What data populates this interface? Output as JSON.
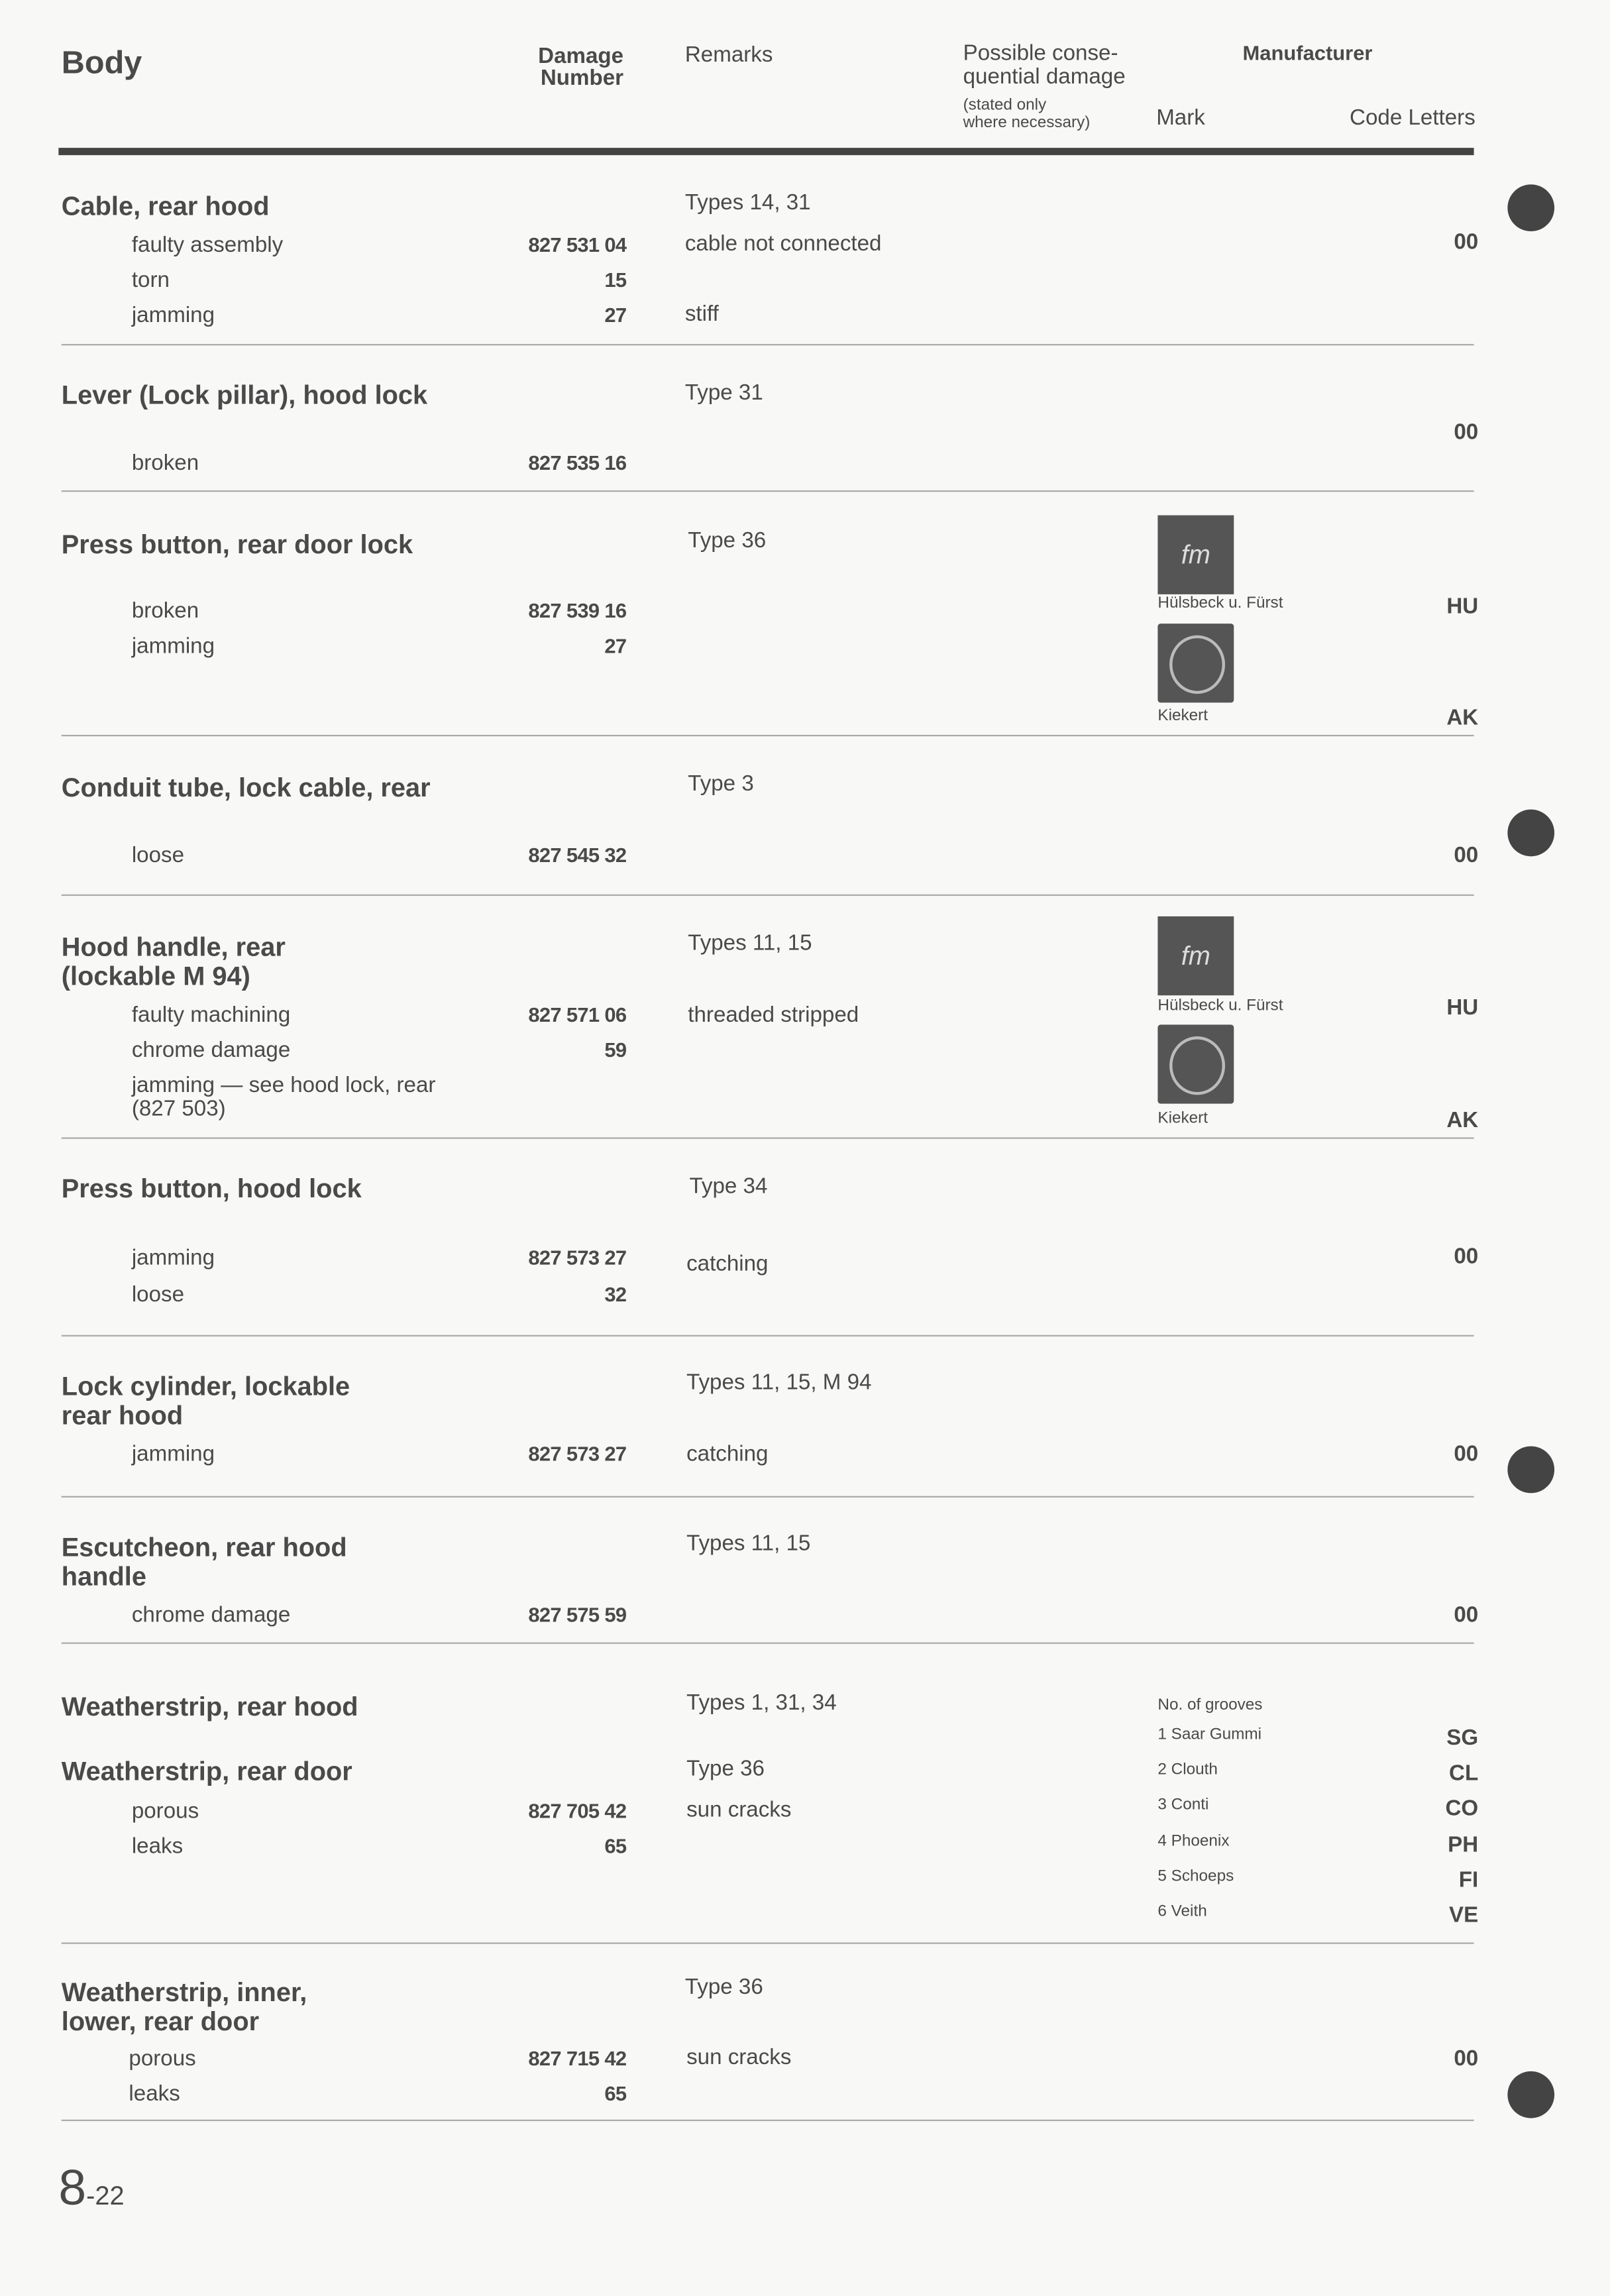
{
  "header": {
    "title": "Body",
    "damage_number": [
      "Damage",
      "Number"
    ],
    "remarks": "Remarks",
    "consequential": [
      "Possible conse-",
      "quential damage"
    ],
    "consequential_note": [
      "(stated only",
      "where necessary)"
    ],
    "manufacturer": "Manufacturer",
    "mark": "Mark",
    "code_letters": "Code Letters"
  },
  "sections": [
    {
      "title": [
        "Cable, rear hood"
      ],
      "remarks": "Types 14, 31",
      "items": [
        {
          "label": "faulty assembly",
          "number": "827 531 04",
          "remark": "cable not connected"
        },
        {
          "label": "torn",
          "number": "15"
        },
        {
          "label": "jamming",
          "number": "27",
          "remark": "stiff"
        }
      ],
      "code": "00"
    },
    {
      "title": [
        "Lever (Lock pillar), hood lock"
      ],
      "remarks": "Type 31",
      "items": [
        {
          "label": "broken",
          "number": "827 535 16"
        }
      ],
      "code": "00"
    },
    {
      "title": [
        "Press button, rear door lock"
      ],
      "remarks": "Type 36",
      "items": [
        {
          "label": "broken",
          "number": "827 539 16"
        },
        {
          "label": "jamming",
          "number": "27"
        }
      ],
      "manufacturers": [
        {
          "mark": "Hülsbeck u. Fürst",
          "code": "HU",
          "logo": "hülsbeck-fürst-logo"
        },
        {
          "mark": "Kiekert",
          "code": "AK",
          "logo": "kiekert-logo"
        }
      ]
    },
    {
      "title": [
        "Conduit tube, lock cable, rear"
      ],
      "remarks": "Type 3",
      "items": [
        {
          "label": "loose",
          "number": "827 545 32"
        }
      ],
      "code": "00"
    },
    {
      "title": [
        "Hood handle, rear",
        "(lockable M 94)"
      ],
      "remarks": "Types 11, 15",
      "items": [
        {
          "label": "faulty machining",
          "number": "827 571 06",
          "remark": "threaded stripped"
        },
        {
          "label": "chrome damage",
          "number": "59"
        },
        {
          "label": "jamming — see hood lock, rear",
          "label2": "(827 503)"
        }
      ],
      "manufacturers": [
        {
          "mark": "Hülsbeck u. Fürst",
          "code": "HU"
        },
        {
          "mark": "Kiekert",
          "code": "AK"
        }
      ]
    },
    {
      "title": [
        "Press button, hood lock"
      ],
      "remarks": "Type 34",
      "items": [
        {
          "label": "jamming",
          "number": "827 573 27",
          "remark": "catching"
        },
        {
          "label": "loose",
          "number": "32"
        }
      ],
      "code": "00"
    },
    {
      "title": [
        "Lock cylinder, lockable",
        "rear hood"
      ],
      "remarks": "Types 11, 15, M 94",
      "items": [
        {
          "label": "jamming",
          "number": "827 573 27",
          "remark": "catching"
        }
      ],
      "code": "00"
    },
    {
      "title": [
        "Escutcheon, rear hood",
        "handle"
      ],
      "remarks": "Types 11, 15",
      "items": [
        {
          "label": "chrome damage",
          "number": "827 575 59"
        }
      ],
      "code": "00"
    },
    {
      "title": [
        "Weatherstrip, rear hood"
      ],
      "remarks": "Types 1, 31, 34",
      "title_b": "Weatherstrip, rear door",
      "remarks_b": "Type 36",
      "items": [
        {
          "label": "porous",
          "number": "827 705 42",
          "remark": "sun cracks"
        },
        {
          "label": "leaks",
          "number": "65"
        }
      ],
      "grooves_label": "No. of grooves",
      "grooves": [
        {
          "mark": "1 Saar Gummi",
          "code": "SG"
        },
        {
          "mark": "2 Clouth",
          "code": "CL"
        },
        {
          "mark": "3 Conti",
          "code": "CO"
        },
        {
          "mark": "4 Phoenix",
          "code": "PH"
        },
        {
          "mark": "5 Schoeps",
          "code": "FI"
        },
        {
          "mark": "6 Veith",
          "code": "VE"
        }
      ]
    },
    {
      "title": [
        "Weatherstrip, inner,",
        "lower, rear door"
      ],
      "remarks": "Type 36",
      "items": [
        {
          "label": "porous",
          "number": "827 715 42",
          "remark": "sun cracks"
        },
        {
          "label": "leaks",
          "number": "65"
        }
      ],
      "code": "00"
    }
  ],
  "footer": {
    "chapter": "8",
    "page": "-22"
  }
}
